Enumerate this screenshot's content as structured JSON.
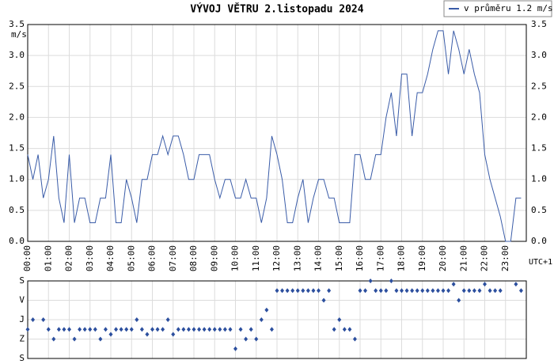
{
  "chart_data": [
    {
      "type": "line",
      "title": "VÝVOJ VĚTRU  2.listopadu 2024",
      "y_label": "m/s",
      "x_label": "UTC+1",
      "grid": true,
      "legend_position": "top-right",
      "xlim": [
        0,
        24
      ],
      "xticks": [
        {
          "value": 0,
          "label": "00:00"
        },
        {
          "value": 1,
          "label": "01:00"
        },
        {
          "value": 2,
          "label": "02:00"
        },
        {
          "value": 3,
          "label": "03:00"
        },
        {
          "value": 4,
          "label": "04:00"
        },
        {
          "value": 5,
          "label": "05:00"
        },
        {
          "value": 6,
          "label": "06:00"
        },
        {
          "value": 7,
          "label": "07:00"
        },
        {
          "value": 8,
          "label": "08:00"
        },
        {
          "value": 9,
          "label": "09:00"
        },
        {
          "value": 10,
          "label": "10:00"
        },
        {
          "value": 11,
          "label": "11:00"
        },
        {
          "value": 12,
          "label": "12:00"
        },
        {
          "value": 13,
          "label": "13:00"
        },
        {
          "value": 14,
          "label": "14:00"
        },
        {
          "value": 15,
          "label": "15:00"
        },
        {
          "value": 16,
          "label": "16:00"
        },
        {
          "value": 17,
          "label": "17:00"
        },
        {
          "value": 18,
          "label": "18:00"
        },
        {
          "value": 19,
          "label": "19:00"
        },
        {
          "value": 20,
          "label": "20:00"
        },
        {
          "value": 21,
          "label": "21:00"
        },
        {
          "value": 22,
          "label": "22:00"
        },
        {
          "value": 23,
          "label": "23:00"
        }
      ],
      "ylim": [
        0,
        3.5
      ],
      "yticks": [
        {
          "value": 0,
          "label": "0.0"
        },
        0.5,
        {
          "value": 1,
          "label": "1.0"
        },
        1.5,
        {
          "value": 2,
          "label": "2.0"
        },
        2.5,
        {
          "value": 3,
          "label": "3.0"
        },
        3.5
      ],
      "x": [
        0,
        0.25,
        0.5,
        0.75,
        1,
        1.25,
        1.5,
        1.75,
        2,
        2.25,
        2.5,
        2.75,
        3,
        3.25,
        3.5,
        3.75,
        4,
        4.25,
        4.5,
        4.75,
        5,
        5.25,
        5.5,
        5.75,
        6,
        6.25,
        6.5,
        6.75,
        7,
        7.25,
        7.5,
        7.75,
        8,
        8.25,
        8.5,
        8.75,
        9,
        9.25,
        9.5,
        9.75,
        10,
        10.25,
        10.5,
        10.75,
        11,
        11.25,
        11.5,
        11.75,
        12,
        12.25,
        12.5,
        12.75,
        13,
        13.25,
        13.5,
        13.75,
        14,
        14.25,
        14.5,
        14.75,
        15,
        15.25,
        15.5,
        15.75,
        16,
        16.25,
        16.5,
        16.75,
        17,
        17.25,
        17.5,
        17.75,
        18,
        18.25,
        18.5,
        18.75,
        19,
        19.25,
        19.5,
        19.75,
        20,
        20.25,
        20.5,
        20.75,
        21,
        21.25,
        21.5,
        21.75,
        22,
        22.25,
        22.5,
        22.75,
        23,
        23.25,
        23.5,
        23.75
      ],
      "series": [
        {
          "name": "v průměru 1.2 m/s",
          "color": "#3a5ca8",
          "values": [
            1.4,
            1.0,
            1.4,
            0.7,
            1.0,
            1.7,
            0.7,
            0.3,
            1.4,
            0.3,
            0.7,
            0.7,
            0.3,
            0.3,
            0.7,
            0.7,
            1.4,
            0.3,
            0.3,
            1.0,
            0.7,
            0.3,
            1.0,
            1.0,
            1.4,
            1.4,
            1.7,
            1.4,
            1.7,
            1.7,
            1.4,
            1.0,
            1.0,
            1.4,
            1.4,
            1.4,
            1.0,
            0.7,
            1.0,
            1.0,
            0.7,
            0.7,
            1.0,
            0.7,
            0.7,
            0.3,
            0.7,
            1.7,
            1.4,
            1.0,
            0.3,
            0.3,
            0.7,
            1.0,
            0.3,
            0.7,
            1.0,
            1.0,
            0.7,
            0.7,
            0.3,
            0.3,
            0.3,
            1.4,
            1.4,
            1.0,
            1.0,
            1.4,
            1.4,
            2.0,
            2.4,
            1.7,
            2.7,
            2.7,
            1.7,
            2.4,
            2.4,
            2.7,
            3.1,
            3.4,
            3.4,
            2.7,
            3.4,
            3.1,
            2.7,
            3.1,
            2.7,
            2.4,
            1.4,
            1.0,
            0.7,
            0.4,
            0.0,
            0.0,
            0.7,
            0.7
          ]
        }
      ]
    },
    {
      "type": "scatter",
      "color": "#2c4f9e",
      "grid": true,
      "xlim": [
        0,
        24
      ],
      "ylim": [
        360,
        0
      ],
      "yticks": [
        {
          "value": 0,
          "label": "S"
        },
        {
          "value": 90,
          "label": "V"
        },
        {
          "value": 180,
          "label": "J"
        },
        {
          "value": 270,
          "label": "Z"
        },
        {
          "value": 360,
          "label": "S"
        }
      ],
      "x": [
        0,
        0.25,
        0.5,
        0.75,
        1,
        1.25,
        1.5,
        1.75,
        2,
        2.25,
        2.5,
        2.75,
        3,
        3.25,
        3.5,
        3.75,
        4,
        4.25,
        4.5,
        4.75,
        5,
        5.25,
        5.5,
        5.75,
        6,
        6.25,
        6.5,
        6.75,
        7,
        7.25,
        7.5,
        7.75,
        8,
        8.25,
        8.5,
        8.75,
        9,
        9.25,
        9.5,
        9.75,
        10,
        10.25,
        10.5,
        10.75,
        11,
        11.25,
        11.5,
        11.75,
        12,
        12.25,
        12.5,
        12.75,
        13,
        13.25,
        13.5,
        13.75,
        14,
        14.25,
        14.5,
        14.75,
        15,
        15.25,
        15.5,
        15.75,
        16,
        16.25,
        16.5,
        16.75,
        17,
        17.25,
        17.5,
        17.75,
        18,
        18.25,
        18.5,
        18.75,
        19,
        19.25,
        19.5,
        19.75,
        20,
        20.25,
        20.5,
        20.75,
        21,
        21.25,
        21.5,
        21.75,
        22,
        22.25,
        22.5,
        22.75,
        23,
        23.25,
        23.5,
        23.75
      ],
      "values": [
        225,
        180,
        null,
        180,
        225,
        270,
        225,
        225,
        225,
        270,
        225,
        225,
        225,
        225,
        270,
        225,
        248,
        225,
        225,
        225,
        225,
        180,
        225,
        248,
        225,
        225,
        225,
        180,
        248,
        225,
        225,
        225,
        225,
        225,
        225,
        225,
        225,
        225,
        225,
        225,
        315,
        225,
        270,
        225,
        270,
        180,
        135,
        225,
        45,
        45,
        45,
        45,
        45,
        45,
        45,
        45,
        45,
        90,
        45,
        225,
        180,
        225,
        225,
        270,
        45,
        45,
        0,
        45,
        45,
        45,
        0,
        45,
        45,
        45,
        45,
        45,
        45,
        45,
        45,
        45,
        45,
        45,
        15,
        90,
        45,
        45,
        45,
        45,
        15,
        45,
        45,
        45,
        null,
        null,
        15,
        45
      ]
    }
  ]
}
